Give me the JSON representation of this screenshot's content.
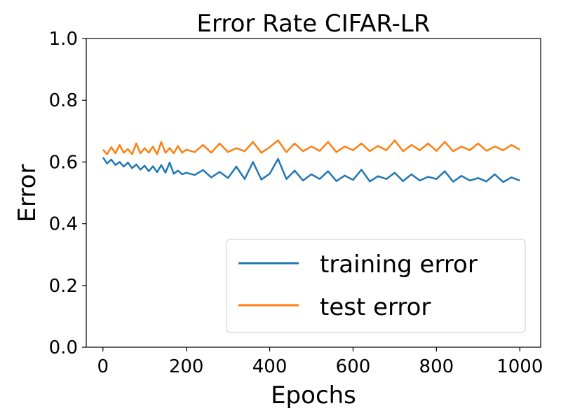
{
  "chart_data": {
    "type": "line",
    "title": "Error Rate CIFAR-LR",
    "xlabel": "Epochs",
    "ylabel": "Error",
    "xlim": [
      -40,
      1050
    ],
    "ylim": [
      0.0,
      1.0
    ],
    "xticks": [
      0,
      200,
      400,
      600,
      800,
      1000
    ],
    "yticks": [
      0.0,
      0.2,
      0.4,
      0.6,
      0.8,
      1.0
    ],
    "xtick_labels": [
      "0",
      "200",
      "400",
      "600",
      "800",
      "1000"
    ],
    "ytick_labels": [
      "0.0",
      "0.2",
      "0.4",
      "0.6",
      "0.8",
      "1.0"
    ],
    "grid": false,
    "legend_position": "lower-right",
    "series": [
      {
        "name": "training error",
        "color": "#1f77b4",
        "x": [
          0,
          10,
          20,
          30,
          40,
          50,
          60,
          70,
          80,
          90,
          100,
          110,
          120,
          130,
          140,
          150,
          160,
          170,
          180,
          190,
          200,
          220,
          240,
          260,
          280,
          300,
          320,
          340,
          360,
          380,
          400,
          420,
          440,
          460,
          480,
          500,
          520,
          540,
          560,
          580,
          600,
          620,
          640,
          660,
          680,
          700,
          720,
          740,
          760,
          780,
          800,
          820,
          840,
          860,
          880,
          900,
          920,
          940,
          960,
          980,
          1000
        ],
        "values": [
          0.615,
          0.595,
          0.608,
          0.59,
          0.6,
          0.585,
          0.598,
          0.58,
          0.592,
          0.575,
          0.588,
          0.57,
          0.586,
          0.567,
          0.59,
          0.565,
          0.598,
          0.562,
          0.572,
          0.56,
          0.565,
          0.558,
          0.574,
          0.55,
          0.568,
          0.548,
          0.585,
          0.545,
          0.6,
          0.543,
          0.562,
          0.61,
          0.545,
          0.572,
          0.54,
          0.56,
          0.545,
          0.57,
          0.538,
          0.556,
          0.542,
          0.575,
          0.537,
          0.554,
          0.545,
          0.565,
          0.538,
          0.56,
          0.54,
          0.552,
          0.545,
          0.57,
          0.536,
          0.555,
          0.54,
          0.548,
          0.537,
          0.56,
          0.535,
          0.55,
          0.54
        ]
      },
      {
        "name": "test error",
        "color": "#ff7f0e",
        "x": [
          0,
          10,
          20,
          30,
          40,
          50,
          60,
          70,
          80,
          90,
          100,
          110,
          120,
          130,
          140,
          150,
          160,
          170,
          180,
          190,
          200,
          220,
          240,
          260,
          280,
          300,
          320,
          340,
          360,
          380,
          400,
          420,
          440,
          460,
          480,
          500,
          520,
          540,
          560,
          580,
          600,
          620,
          640,
          660,
          680,
          700,
          720,
          740,
          760,
          780,
          800,
          820,
          840,
          860,
          880,
          900,
          920,
          940,
          960,
          980,
          1000
        ],
        "values": [
          0.64,
          0.625,
          0.648,
          0.628,
          0.655,
          0.63,
          0.642,
          0.625,
          0.66,
          0.628,
          0.645,
          0.63,
          0.65,
          0.625,
          0.665,
          0.63,
          0.645,
          0.628,
          0.652,
          0.63,
          0.64,
          0.632,
          0.655,
          0.63,
          0.66,
          0.632,
          0.645,
          0.635,
          0.665,
          0.63,
          0.648,
          0.67,
          0.632,
          0.66,
          0.635,
          0.65,
          0.636,
          0.665,
          0.632,
          0.65,
          0.638,
          0.66,
          0.635,
          0.652,
          0.638,
          0.67,
          0.635,
          0.655,
          0.638,
          0.66,
          0.636,
          0.665,
          0.635,
          0.65,
          0.638,
          0.66,
          0.636,
          0.65,
          0.638,
          0.655,
          0.64
        ]
      }
    ]
  }
}
